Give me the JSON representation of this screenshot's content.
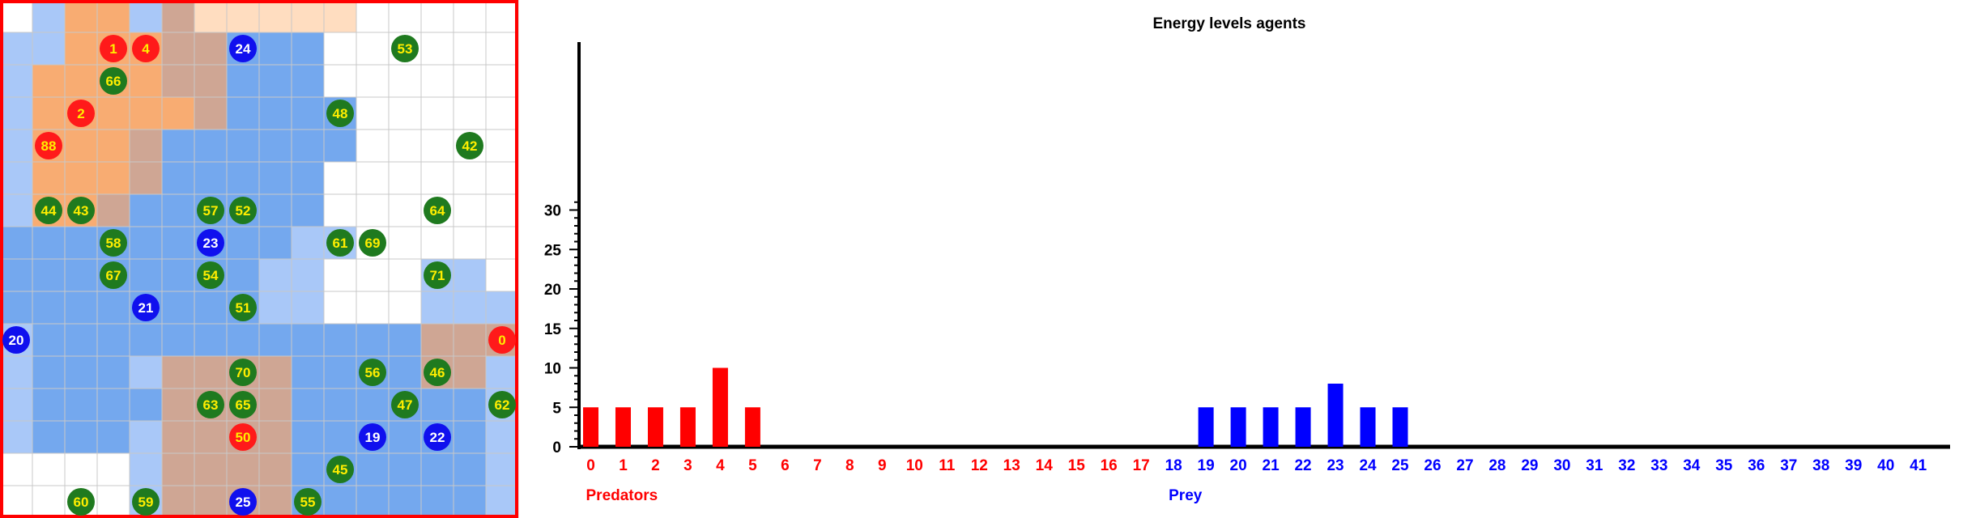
{
  "grid": {
    "rows": 16,
    "cols": 16,
    "rows_text": [
      "WLOOLKTTTTTWWWWW",
      "LLOOOKKBBBWWWWWW",
      "LOOOOKKBBBWWWWWW",
      "LOOOOOKBBBBWWWWW",
      "LOOOKBBBBBBWWWWW",
      "LOOOKBBBBBWWWWWW",
      "LOOKBBBBBBWWWWWW",
      "BBBBBBBBBLLWWWWW",
      "BBBBBBBBLLWWWLLW",
      "BBBBBBBBLLWWWLLL",
      "LBBBBBBBBBBBBKKK",
      "LBBBLKKKKBBBBKKL",
      "LBBBBKKKKBBBBBBL",
      "LBBBLKKKKBBBBBBL",
      "WWWWLKKKKBBBBBBL",
      "WWWWLKKKKBBBBBBL"
    ],
    "cell_colors": {
      "W": "#ffffff",
      "T": "#ffddc0",
      "O": "#f8ac72",
      "L": "#a9c8f8",
      "B": "#74a8ee",
      "K": "#cfa694"
    },
    "agents": [
      {
        "id": "1",
        "type": "predator",
        "row": 1,
        "col": 3
      },
      {
        "id": "4",
        "type": "predator",
        "row": 1,
        "col": 4
      },
      {
        "id": "24",
        "type": "prey",
        "row": 1,
        "col": 7
      },
      {
        "id": "53",
        "type": "grass",
        "row": 1,
        "col": 12
      },
      {
        "id": "66",
        "type": "grass",
        "row": 2,
        "col": 3
      },
      {
        "id": "2",
        "type": "predator",
        "row": 3,
        "col": 2
      },
      {
        "id": "48",
        "type": "grass",
        "row": 3,
        "col": 10
      },
      {
        "id": "88",
        "type": "predator",
        "row": 4,
        "col": 1
      },
      {
        "id": "42",
        "type": "grass",
        "row": 4,
        "col": 14
      },
      {
        "id": "44",
        "type": "grass",
        "row": 6,
        "col": 1
      },
      {
        "id": "43",
        "type": "grass",
        "row": 6,
        "col": 2
      },
      {
        "id": "57",
        "type": "grass",
        "row": 6,
        "col": 6
      },
      {
        "id": "52",
        "type": "grass",
        "row": 6,
        "col": 7
      },
      {
        "id": "64",
        "type": "grass",
        "row": 6,
        "col": 13
      },
      {
        "id": "58",
        "type": "grass",
        "row": 7,
        "col": 3
      },
      {
        "id": "23",
        "type": "prey",
        "row": 7,
        "col": 6
      },
      {
        "id": "61",
        "type": "grass",
        "row": 7,
        "col": 10
      },
      {
        "id": "69",
        "type": "grass",
        "row": 7,
        "col": 11
      },
      {
        "id": "67",
        "type": "grass",
        "row": 8,
        "col": 3
      },
      {
        "id": "54",
        "type": "grass",
        "row": 8,
        "col": 6
      },
      {
        "id": "71",
        "type": "grass",
        "row": 8,
        "col": 13
      },
      {
        "id": "21",
        "type": "prey",
        "row": 9,
        "col": 4
      },
      {
        "id": "51",
        "type": "grass",
        "row": 9,
        "col": 7
      },
      {
        "id": "20",
        "type": "prey",
        "row": 10,
        "col": 0
      },
      {
        "id": "0",
        "type": "predator",
        "row": 10,
        "col": 15
      },
      {
        "id": "70",
        "type": "grass",
        "row": 11,
        "col": 7
      },
      {
        "id": "56",
        "type": "grass",
        "row": 11,
        "col": 11
      },
      {
        "id": "46",
        "type": "grass",
        "row": 11,
        "col": 13
      },
      {
        "id": "63",
        "type": "grass",
        "row": 12,
        "col": 6
      },
      {
        "id": "65",
        "type": "grass",
        "row": 12,
        "col": 7
      },
      {
        "id": "47",
        "type": "grass",
        "row": 12,
        "col": 12
      },
      {
        "id": "62",
        "type": "grass",
        "row": 12,
        "col": 15
      },
      {
        "id": "50",
        "type": "predator",
        "row": 13,
        "col": 7
      },
      {
        "id": "19",
        "type": "prey",
        "row": 13,
        "col": 11
      },
      {
        "id": "22",
        "type": "prey",
        "row": 13,
        "col": 13
      },
      {
        "id": "45",
        "type": "grass",
        "row": 14,
        "col": 10
      },
      {
        "id": "60",
        "type": "grass",
        "row": 15,
        "col": 2
      },
      {
        "id": "59",
        "type": "grass",
        "row": 15,
        "col": 4
      },
      {
        "id": "25",
        "type": "prey",
        "row": 15,
        "col": 7
      },
      {
        "id": "55",
        "type": "grass",
        "row": 15,
        "col": 9
      }
    ],
    "agent_colors": {
      "predator": {
        "fill": "#ff1a1a",
        "text": "#ffee00"
      },
      "prey": {
        "fill": "#1010ee",
        "text": "#ffffff"
      },
      "grass": {
        "fill": "#1f7a1f",
        "text": "#ffee00"
      }
    }
  },
  "chart_data": {
    "type": "bar",
    "title": "Energy levels agents",
    "ylim": [
      0,
      31
    ],
    "yticks": [
      0,
      5,
      10,
      15,
      20,
      25,
      30
    ],
    "categories": [
      "0",
      "1",
      "2",
      "3",
      "4",
      "5",
      "6",
      "7",
      "8",
      "9",
      "10",
      "11",
      "12",
      "13",
      "14",
      "15",
      "16",
      "17",
      "18",
      "19",
      "20",
      "21",
      "22",
      "23",
      "24",
      "25",
      "26",
      "27",
      "28",
      "29",
      "30",
      "31",
      "32",
      "33",
      "34",
      "35",
      "36",
      "37",
      "38",
      "39",
      "40",
      "41"
    ],
    "values": [
      5,
      5,
      5,
      5,
      10,
      5,
      null,
      null,
      null,
      null,
      null,
      null,
      null,
      null,
      null,
      null,
      null,
      null,
      null,
      5,
      5,
      5,
      5,
      8,
      5,
      5,
      null,
      null,
      null,
      null,
      null,
      null,
      null,
      null,
      null,
      null,
      null,
      null,
      null,
      null,
      null,
      null
    ],
    "groups": [
      {
        "name": "Predators",
        "first": 0,
        "last": 17,
        "color": "#ff0000"
      },
      {
        "name": "Prey",
        "first": 18,
        "last": 41,
        "color": "#0000ff"
      }
    ]
  }
}
